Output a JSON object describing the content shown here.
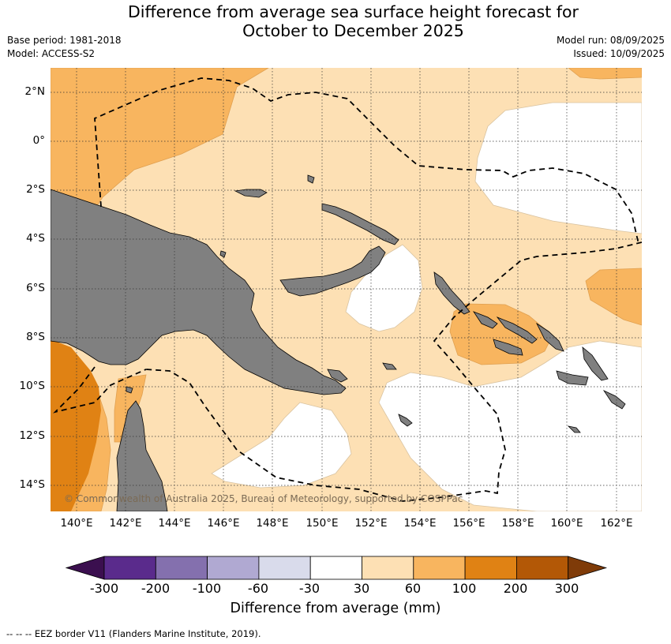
{
  "title_line1": "Difference from average sea surface height forecast for",
  "title_line2": "October to December 2025",
  "base_period": "Base period: 1981-2018",
  "model": "Model: ACCESS-S2",
  "model_run": "Model run: 08/09/2025",
  "issued": "Issued: 10/09/2025",
  "lat_labels": [
    "2°N",
    "0°",
    "2°S",
    "4°S",
    "6°S",
    "8°S",
    "10°S",
    "12°S",
    "14°S"
  ],
  "lon_labels": [
    "140°E",
    "142°E",
    "144°E",
    "146°E",
    "148°E",
    "150°E",
    "152°E",
    "154°E",
    "156°E",
    "158°E",
    "160°E",
    "162°E"
  ],
  "copyright": "© Commonwealth of Australia 2025, Bureau of Meteorology, supported by COSPPac",
  "colorbar": {
    "ticks": [
      "-300",
      "-200",
      "-100",
      "-60",
      "-30",
      "30",
      "60",
      "100",
      "200",
      "300"
    ],
    "colors": [
      "#3b0f4f",
      "#5a2b8c",
      "#8470ae",
      "#b0a9d2",
      "#d9dbeb",
      "#ffffff",
      "#fde0b4",
      "#f8b55f",
      "#e08214",
      "#b35806",
      "#7f3b08"
    ],
    "label": "Difference from average (mm)"
  },
  "legend_note": "--  --  -- EEZ border V11 (Flanders Marine Institute, 2019).",
  "fills": {
    "land": "#808080",
    "band_30_60": "#fde0b4",
    "band_60_100": "#f8b55f",
    "band_100_200": "#e08214",
    "neutral": "#ffffff"
  }
}
